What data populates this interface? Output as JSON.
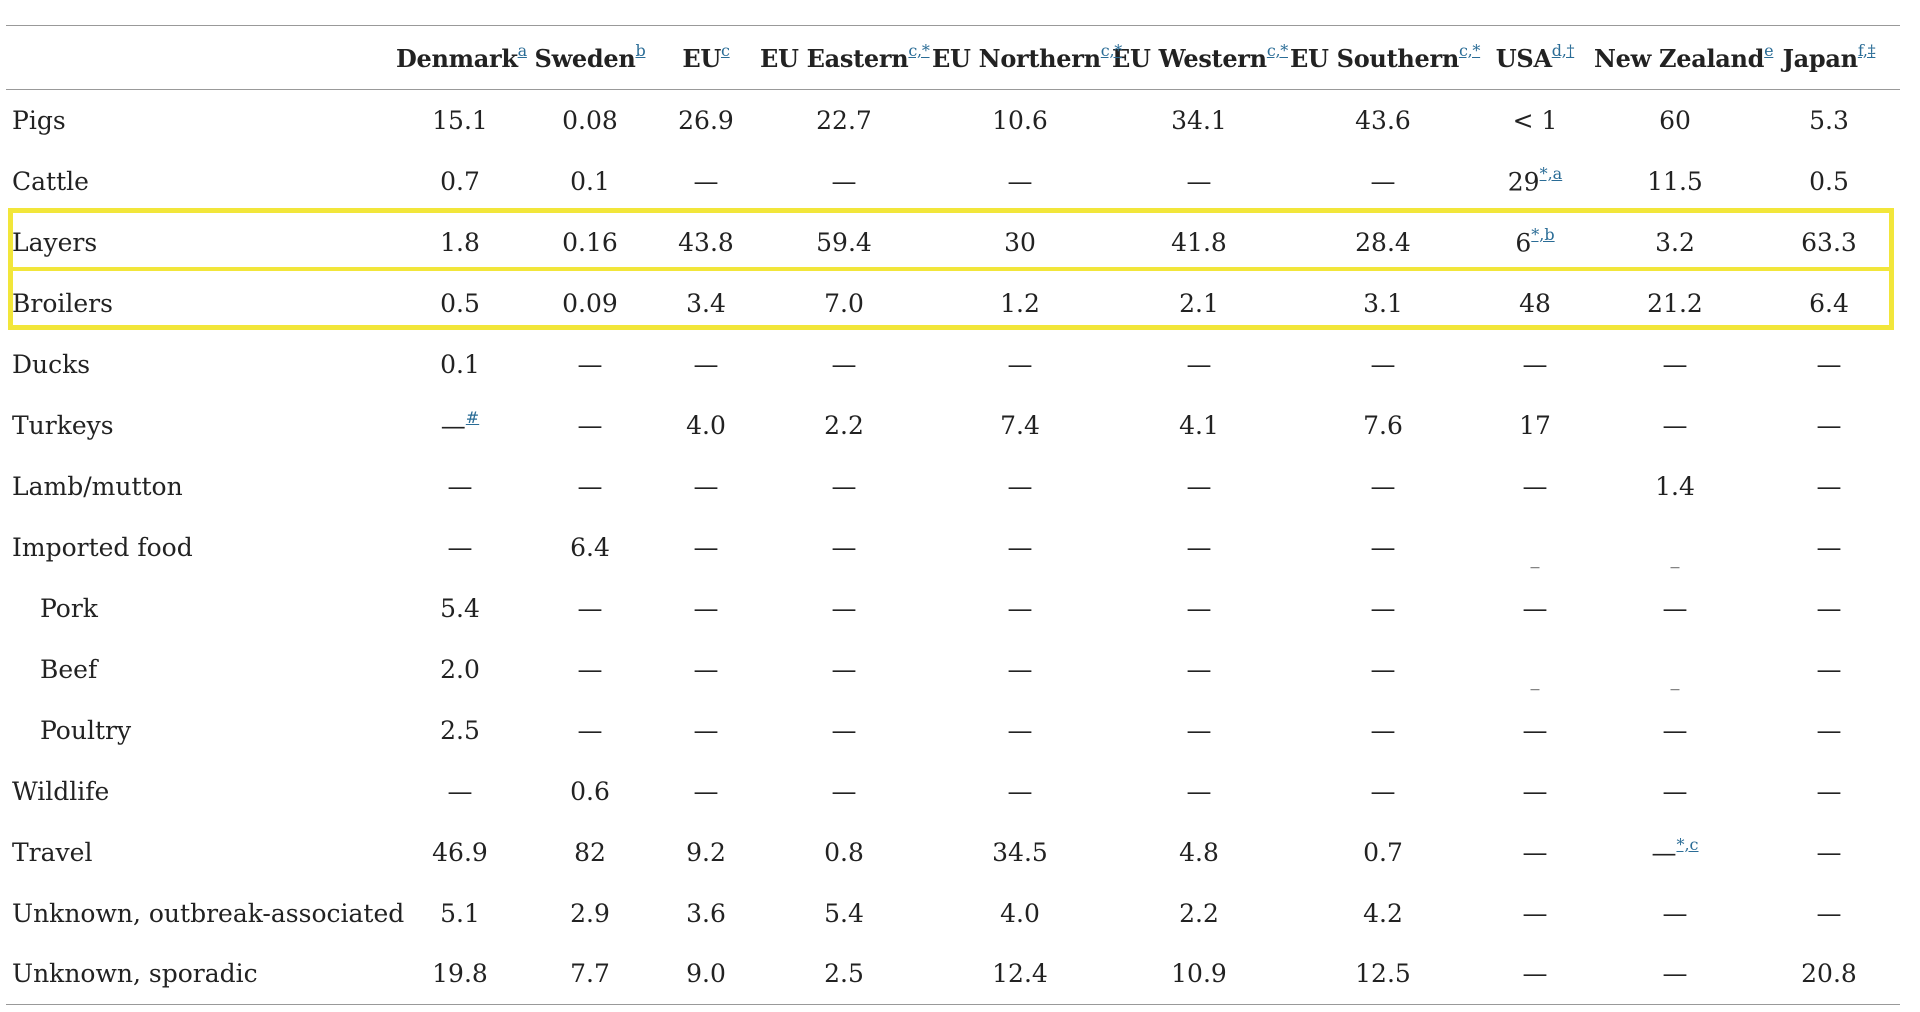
{
  "table": {
    "corner": "",
    "columns": [
      {
        "label": "Denmark",
        "note": "a"
      },
      {
        "label": "Sweden",
        "note": "b"
      },
      {
        "label": "EU",
        "note": "c"
      },
      {
        "label": "EU Eastern",
        "note": "c,*"
      },
      {
        "label": "EU Northern",
        "note": "c,*"
      },
      {
        "label": "EU Western",
        "note": "c,*"
      },
      {
        "label": "EU Southern",
        "note": "c,*"
      },
      {
        "label": "USA",
        "note": "d,†"
      },
      {
        "label": "New Zealand",
        "note": "e"
      },
      {
        "label": "Japan",
        "note": "f,‡"
      }
    ],
    "rows": [
      {
        "label": "Pigs",
        "values": [
          "15.1",
          "0.08",
          "26.9",
          "22.7",
          "10.6",
          "34.1",
          "43.6",
          "< 1",
          "60",
          "5.3"
        ]
      },
      {
        "label": "Cattle",
        "values": [
          "0.7",
          "0.1",
          "—",
          "—",
          "—",
          "—",
          "—",
          "29",
          "11.5",
          "0.5"
        ],
        "notes": {
          "7": "*,a"
        }
      },
      {
        "label": "Layers",
        "values": [
          "1.8",
          "0.16",
          "43.8",
          "59.4",
          "30",
          "41.8",
          "28.4",
          "6",
          "3.2",
          "63.3"
        ],
        "notes": {
          "7": "*,b"
        },
        "highlighted": true
      },
      {
        "label": "Broilers",
        "values": [
          "0.5",
          "0.09",
          "3.4",
          "7.0",
          "1.2",
          "2.1",
          "3.1",
          "48",
          "21.2",
          "6.4"
        ],
        "highlighted": true
      },
      {
        "label": "Ducks",
        "values": [
          "0.1",
          "—",
          "—",
          "—",
          "—",
          "—",
          "—",
          "—",
          "—",
          "—"
        ]
      },
      {
        "label": "Turkeys",
        "values": [
          "—",
          "—",
          "4.0",
          "2.2",
          "7.4",
          "4.1",
          "7.6",
          "17",
          "—",
          "—"
        ],
        "notes": {
          "0": "#"
        }
      },
      {
        "label": "Lamb/mutton",
        "values": [
          "—",
          "—",
          "—",
          "—",
          "—",
          "—",
          "—",
          "—",
          "1.4",
          "—"
        ]
      },
      {
        "label": "Imported food",
        "values": [
          "—",
          "6.4",
          "—",
          "—",
          "—",
          "—",
          "—",
          "_",
          "_",
          "—"
        ]
      },
      {
        "label": "Pork",
        "indent": true,
        "values": [
          "5.4",
          "—",
          "—",
          "—",
          "—",
          "—",
          "—",
          "—",
          "—",
          "—"
        ]
      },
      {
        "label": "Beef",
        "indent": true,
        "values": [
          "2.0",
          "—",
          "—",
          "—",
          "—",
          "—",
          "—",
          "_",
          "_",
          "—"
        ]
      },
      {
        "label": "Poultry",
        "indent": true,
        "values": [
          "2.5",
          "—",
          "—",
          "—",
          "—",
          "—",
          "—",
          "—",
          "—",
          "—"
        ]
      },
      {
        "label": "Wildlife",
        "values": [
          "—",
          "0.6",
          "—",
          "—",
          "—",
          "—",
          "—",
          "—",
          "—",
          "—"
        ]
      },
      {
        "label": "Travel",
        "values": [
          "46.9",
          "82",
          "9.2",
          "0.8",
          "34.5",
          "4.8",
          "0.7",
          "—",
          "—",
          "—"
        ],
        "notes": {
          "8": "*,c"
        }
      },
      {
        "label": "Unknown, outbreak-associated",
        "values": [
          "5.1",
          "2.9",
          "3.6",
          "5.4",
          "4.0",
          "2.2",
          "4.2",
          "—",
          "—",
          "—"
        ]
      },
      {
        "label": "Unknown, sporadic",
        "values": [
          "19.8",
          "7.7",
          "9.0",
          "2.5",
          "12.4",
          "10.9",
          "12.5",
          "—",
          "—",
          "20.8"
        ]
      }
    ],
    "highlight_color": "#f2e63a",
    "link_color": "#2a6c96"
  }
}
